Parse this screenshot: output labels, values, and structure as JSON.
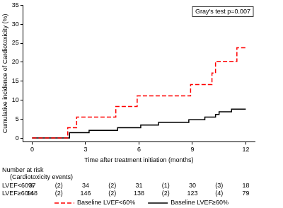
{
  "chart_data": {
    "type": "line",
    "x_label": "Time after treatment initiation (months)",
    "y_label": "Cumulative incidence of Cardiotoxicity (%)",
    "annotation": "Gray's test p=0.007",
    "xlim": [
      -0.5,
      12.5
    ],
    "xticks": [
      0,
      3,
      6,
      9,
      12
    ],
    "ylim": [
      -1,
      35
    ],
    "yticks": [
      0,
      5,
      10,
      15,
      20,
      25,
      30,
      35
    ],
    "grid": false,
    "legend": "bottom",
    "series": [
      {
        "name": "Baseline LVEF<60%",
        "color": "#ff0000",
        "line_style": "dashed",
        "x": [
          0,
          2.0,
          2.5,
          4.7,
          5.9,
          8.9,
          10.1,
          10.3,
          11.5,
          12
        ],
        "values": [
          0,
          2.7,
          5.5,
          8.3,
          11.1,
          14.1,
          17.1,
          20.2,
          23.8,
          23.8
        ]
      },
      {
        "name": "Baseline LVEF≥60%",
        "color": "#000000",
        "line_style": "solid",
        "x": [
          0,
          2.1,
          3.2,
          4.8,
          6.1,
          7.1,
          8.8,
          9.7,
          10.3,
          10.5,
          11.2,
          12
        ],
        "values": [
          0,
          1.4,
          2.0,
          2.7,
          3.4,
          4.1,
          4.8,
          5.5,
          6.2,
          6.9,
          7.6,
          7.6
        ]
      }
    ],
    "risk_table": {
      "title": "Number at risk",
      "subtitle": "(Cardiotoxicity events)",
      "rows": [
        {
          "label": "LVEF<60%",
          "at_risk": [
            37,
            34,
            31,
            30,
            18
          ],
          "events": [
            "(2)",
            "(2)",
            "(1)",
            "(3)"
          ]
        },
        {
          "label": "LVEF≥60%",
          "at_risk": [
            148,
            146,
            138,
            123,
            79
          ],
          "events": [
            "(2)",
            "(2)",
            "(2)",
            "(4)"
          ]
        }
      ]
    }
  }
}
